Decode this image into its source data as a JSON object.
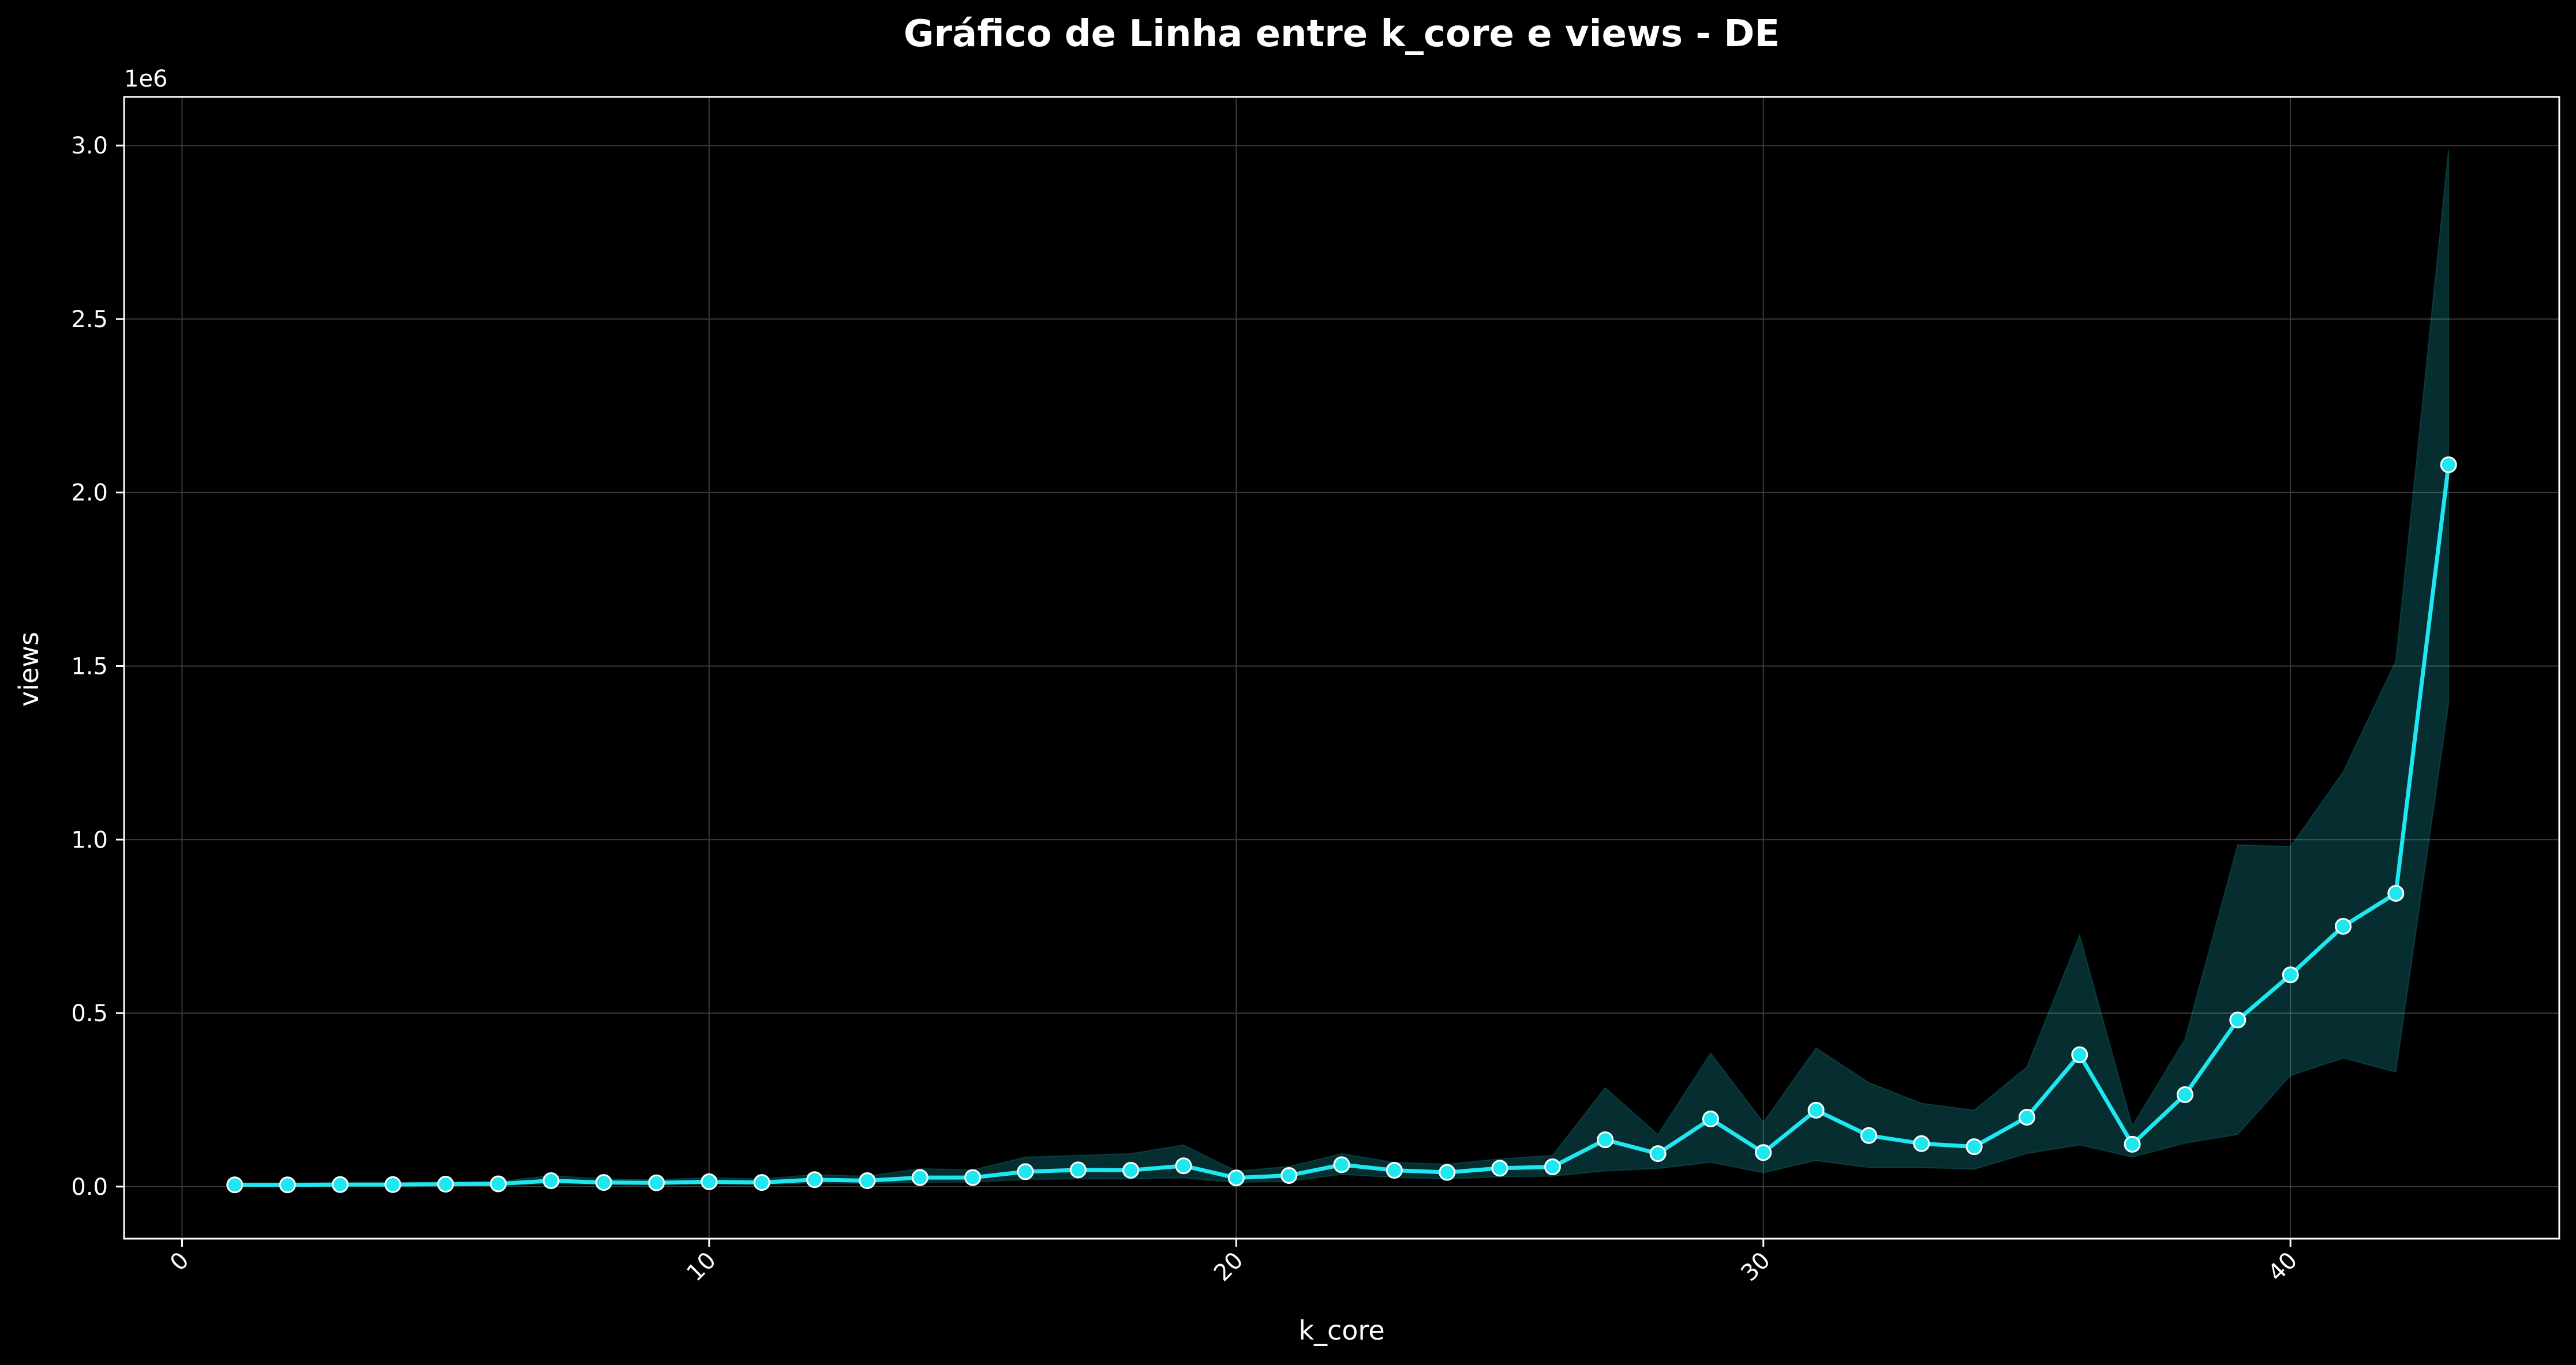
{
  "chart_data": {
    "type": "line",
    "title": "Gráfico de Linha entre k_core e views - DE",
    "xlabel": "k_core",
    "ylabel": "views",
    "y_offset_label": "1e6",
    "xlim": [
      -1.1,
      45.1
    ],
    "ylim": [
      -0.15,
      3.14
    ],
    "x_ticks": [
      0,
      10,
      20,
      30,
      40
    ],
    "x_tick_labels": [
      "0",
      "10",
      "20",
      "30",
      "40"
    ],
    "y_ticks": [
      0.0,
      0.5,
      1.0,
      1.5,
      2.0,
      2.5,
      3.0
    ],
    "y_tick_labels": [
      "0.0",
      "0.5",
      "1.0",
      "1.5",
      "2.0",
      "2.5",
      "3.0"
    ],
    "grid": true,
    "colors": {
      "line": "#1fe7f0",
      "band": "#0a4d4f",
      "marker_edge": "#ffffff",
      "background": "#000000",
      "grid": "#3a3a3a",
      "text": "#ffffff"
    },
    "series": [
      {
        "name": "views",
        "x": [
          1,
          2,
          3,
          4,
          5,
          6,
          7,
          8,
          9,
          10,
          11,
          12,
          13,
          14,
          15,
          16,
          17,
          18,
          19,
          20,
          21,
          22,
          23,
          24,
          25,
          26,
          27,
          28,
          29,
          30,
          31,
          32,
          33,
          34,
          35,
          36,
          37,
          38,
          39,
          40,
          41,
          42,
          43
        ],
        "values": [
          0.005,
          0.005,
          0.006,
          0.006,
          0.007,
          0.008,
          0.017,
          0.012,
          0.011,
          0.014,
          0.012,
          0.02,
          0.017,
          0.026,
          0.026,
          0.043,
          0.048,
          0.047,
          0.06,
          0.025,
          0.032,
          0.063,
          0.047,
          0.041,
          0.053,
          0.057,
          0.135,
          0.095,
          0.195,
          0.098,
          0.22,
          0.147,
          0.124,
          0.115,
          0.2,
          0.38,
          0.122,
          0.265,
          0.48,
          0.61,
          0.75,
          0.845,
          2.08
        ],
        "ci_lower": [
          0.002,
          0.002,
          0.003,
          0.003,
          0.003,
          0.004,
          0.008,
          0.006,
          0.006,
          0.007,
          0.006,
          0.01,
          0.009,
          0.012,
          0.013,
          0.02,
          0.022,
          0.022,
          0.025,
          0.012,
          0.015,
          0.035,
          0.026,
          0.022,
          0.028,
          0.03,
          0.045,
          0.052,
          0.07,
          0.04,
          0.075,
          0.055,
          0.055,
          0.05,
          0.095,
          0.12,
          0.085,
          0.125,
          0.15,
          0.32,
          0.37,
          0.33,
          1.39
        ],
        "ci_upper": [
          0.01,
          0.01,
          0.012,
          0.012,
          0.014,
          0.015,
          0.032,
          0.022,
          0.02,
          0.026,
          0.022,
          0.035,
          0.03,
          0.052,
          0.048,
          0.085,
          0.09,
          0.095,
          0.12,
          0.045,
          0.058,
          0.095,
          0.07,
          0.065,
          0.08,
          0.09,
          0.285,
          0.15,
          0.385,
          0.185,
          0.4,
          0.3,
          0.24,
          0.22,
          0.345,
          0.725,
          0.175,
          0.425,
          0.985,
          0.98,
          1.195,
          1.515,
          2.99
        ]
      }
    ]
  }
}
